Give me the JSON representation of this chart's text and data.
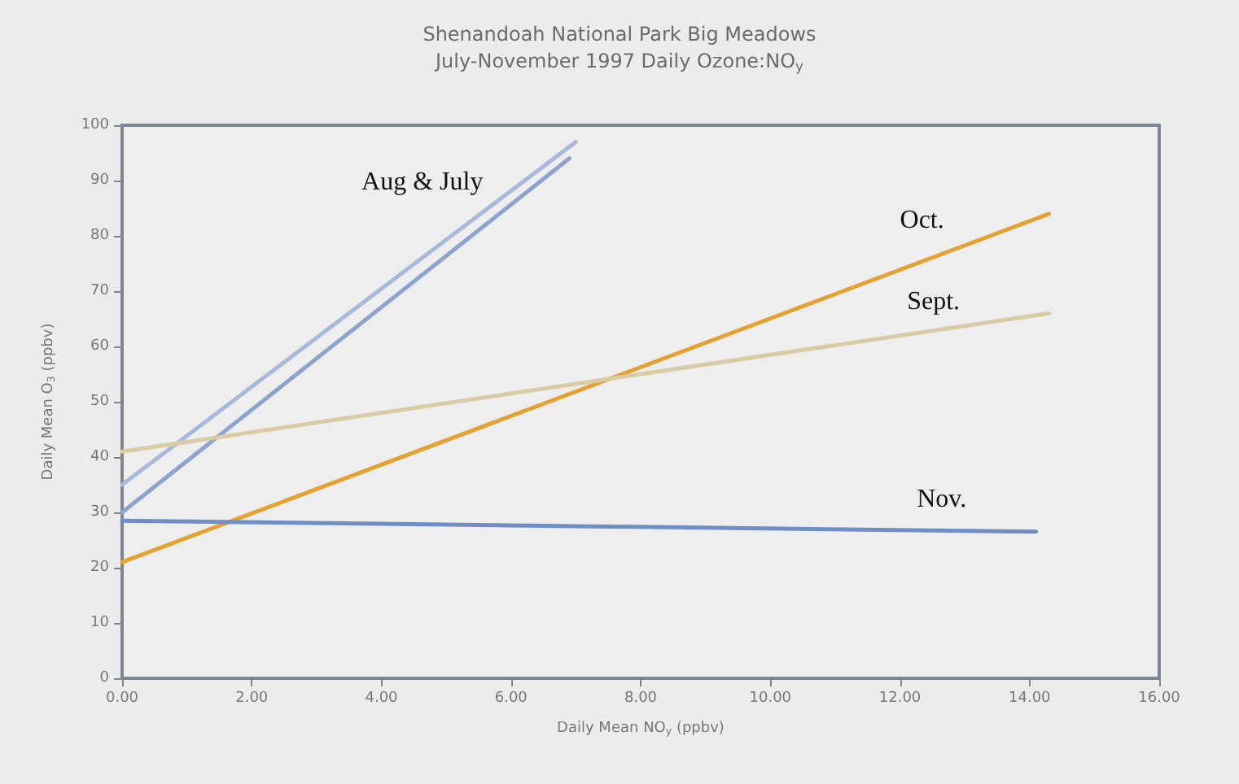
{
  "chart_data": {
    "type": "line",
    "title": "Shenandoah National Park Big Meadows",
    "subtitle": "July-November 1997 Daily Ozone:NO$_{y}$",
    "xlabel": "Daily Mean NO$_{y}$ (ppbv)",
    "ylabel": "Daily Mean O$_{3}$ (ppbv)",
    "series": [
      {
        "name": "Aug & July",
        "color": "#a9b9d9",
        "x": [
          0,
          7
        ],
        "values": [
          35,
          97
        ]
      },
      {
        "color": "#8ea3cc",
        "x": [
          0,
          6.9
        ],
        "values": [
          30,
          94
        ]
      },
      {
        "name": "Oct.",
        "color": "#e3a233",
        "x": [
          0,
          14.3
        ],
        "values": [
          21,
          84
        ]
      },
      {
        "name": "Sept.",
        "color": "#d9cba6",
        "x": [
          0,
          14.3
        ],
        "values": [
          41,
          66
        ]
      },
      {
        "name": "Nov.",
        "color": "#6f8ec6",
        "x": [
          0,
          14.1
        ],
        "values": [
          28.5,
          26.5
        ]
      }
    ],
    "xlim": [
      0,
      16
    ],
    "xticks": [
      {
        "value": 0,
        "label": "0.00"
      },
      {
        "value": 2,
        "label": "2.00"
      },
      {
        "value": 4,
        "label": "4.00"
      },
      {
        "value": 6,
        "label": "6.00"
      },
      {
        "value": 8,
        "label": "8.00"
      },
      {
        "value": 10,
        "label": "10.00"
      },
      {
        "value": 12,
        "label": "12.00"
      },
      {
        "value": 14,
        "label": "14.00"
      },
      {
        "value": 16,
        "label": "16.00"
      }
    ],
    "ylim": [
      0,
      100
    ],
    "yticks": [
      0,
      10,
      20,
      30,
      40,
      50,
      60,
      70,
      80,
      90,
      100
    ],
    "marker": "none",
    "line_style": "solid",
    "grid": false,
    "legend": false
  }
}
